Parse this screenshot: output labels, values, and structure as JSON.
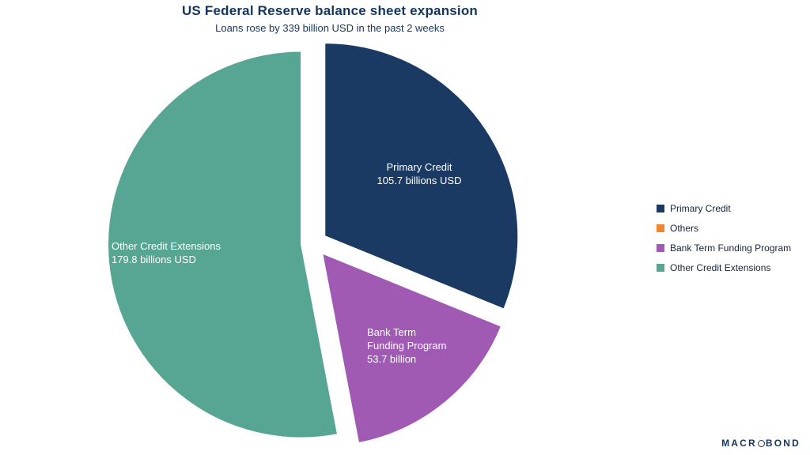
{
  "header": {
    "title": "US Federal Reserve balance sheet expansion",
    "subtitle": "Loans rose by 339 billion USD in the past 2 weeks"
  },
  "chart_data": {
    "type": "pie",
    "title": "US Federal Reserve balance sheet expansion",
    "subtitle": "Loans rose by 339 billion USD in the past 2 weeks",
    "unit": "billions USD",
    "total_mentioned": 339,
    "start_angle_deg": 0,
    "direction": "clockwise",
    "legend_position": "right",
    "slices": [
      {
        "label": "Primary Credit",
        "value": 105.7,
        "color": "#1a3a63"
      },
      {
        "label": "Others",
        "value": null,
        "color": "#f0862e"
      },
      {
        "label": "Bank Term Funding Program",
        "value": 53.7,
        "color": "#a05ab4"
      },
      {
        "label": "Other Credit Extensions",
        "value": 179.8,
        "color": "#57a593"
      }
    ]
  },
  "slice_labels": {
    "primary": {
      "lines": [
        "Primary Credit",
        "105.7 billions USD"
      ]
    },
    "btfp": {
      "lines": [
        "Bank Term",
        "Funding Program",
        "53.7 billion"
      ]
    },
    "oce": {
      "lines": [
        "Other Credit Extensions",
        "179.8 billions USD"
      ]
    }
  },
  "branding": {
    "pre": "MACR",
    "post": "BOND",
    "o_icon": "circle-o-icon"
  }
}
